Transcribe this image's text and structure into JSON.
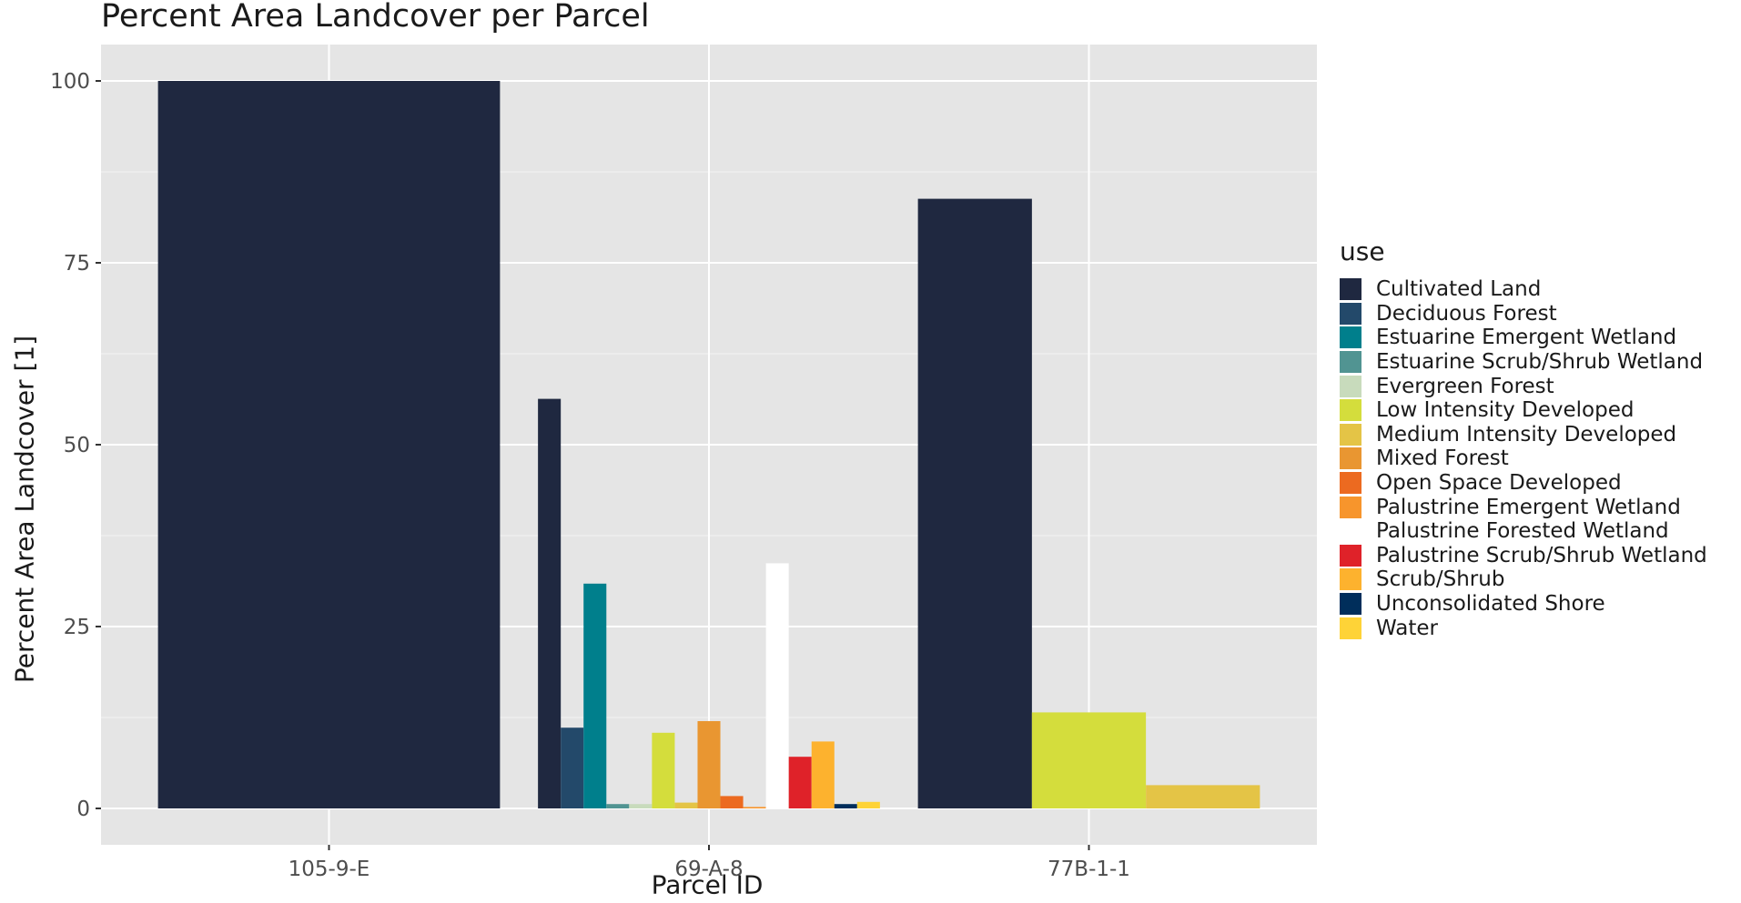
{
  "chart_data": {
    "type": "bar",
    "title": "Percent Area Landcover per Parcel",
    "xlabel": "Parcel ID",
    "ylabel": "Percent Area Landcover [1]",
    "ylim": [
      -5,
      105
    ],
    "yticks": [
      0,
      25,
      50,
      75,
      100
    ],
    "categories": [
      "105-9-E",
      "69-A-8",
      "77B-1-1"
    ],
    "grid": true,
    "legend": {
      "title": "use",
      "placement": "right",
      "entries": [
        {
          "name": "Cultivated Land",
          "color": "#1f2840"
        },
        {
          "name": "Deciduous Forest",
          "color": "#23496a"
        },
        {
          "name": "Estuarine Emergent Wetland",
          "color": "#007f8c"
        },
        {
          "name": "Estuarine Scrub/Shrub Wetland",
          "color": "#519492"
        },
        {
          "name": "Evergreen Forest",
          "color": "#c8dbbc"
        },
        {
          "name": "Low Intensity Developed",
          "color": "#d4dd3c"
        },
        {
          "name": "Medium Intensity Developed",
          "color": "#e4c446"
        },
        {
          "name": "Mixed Forest",
          "color": "#e99631"
        },
        {
          "name": "Open Space Developed",
          "color": "#ec6a20"
        },
        {
          "name": "Palustrine Emergent Wetland",
          "color": "#f7952c"
        },
        {
          "name": "Palustrine Forested Wetland",
          "color": "#ffffff"
        },
        {
          "name": "Palustrine Scrub/Shrub Wetland",
          "color": "#df2229"
        },
        {
          "name": "Scrub/Shrub",
          "color": "#fdb22e"
        },
        {
          "name": "Unconsolidated Shore",
          "color": "#002e5b"
        },
        {
          "name": "Water",
          "color": "#fed337"
        }
      ]
    },
    "series": [
      {
        "category": "105-9-E",
        "bars": [
          {
            "use": "Cultivated Land",
            "value": 100
          }
        ]
      },
      {
        "category": "69-A-8",
        "bars": [
          {
            "use": "Cultivated Land",
            "value": 56.3
          },
          {
            "use": "Deciduous Forest",
            "value": 11.1
          },
          {
            "use": "Estuarine Emergent Wetland",
            "value": 30.9
          },
          {
            "use": "Estuarine Scrub/Shrub Wetland",
            "value": 0.6
          },
          {
            "use": "Evergreen Forest",
            "value": 0.6
          },
          {
            "use": "Low Intensity Developed",
            "value": 10.4
          },
          {
            "use": "Medium Intensity Developed",
            "value": 0.8
          },
          {
            "use": "Mixed Forest",
            "value": 12.0
          },
          {
            "use": "Open Space Developed",
            "value": 1.7
          },
          {
            "use": "Palustrine Emergent Wetland",
            "value": 0.2
          },
          {
            "use": "Palustrine Forested Wetland",
            "value": 33.7
          },
          {
            "use": "Palustrine Scrub/Shrub Wetland",
            "value": 7.1
          },
          {
            "use": "Scrub/Shrub",
            "value": 9.2
          },
          {
            "use": "Unconsolidated Shore",
            "value": 0.6
          },
          {
            "use": "Water",
            "value": 0.9
          }
        ]
      },
      {
        "category": "77B-1-1",
        "bars": [
          {
            "use": "Cultivated Land",
            "value": 83.8
          },
          {
            "use": "Low Intensity Developed",
            "value": 13.2
          },
          {
            "use": "Medium Intensity Developed",
            "value": 3.2
          }
        ]
      }
    ]
  }
}
